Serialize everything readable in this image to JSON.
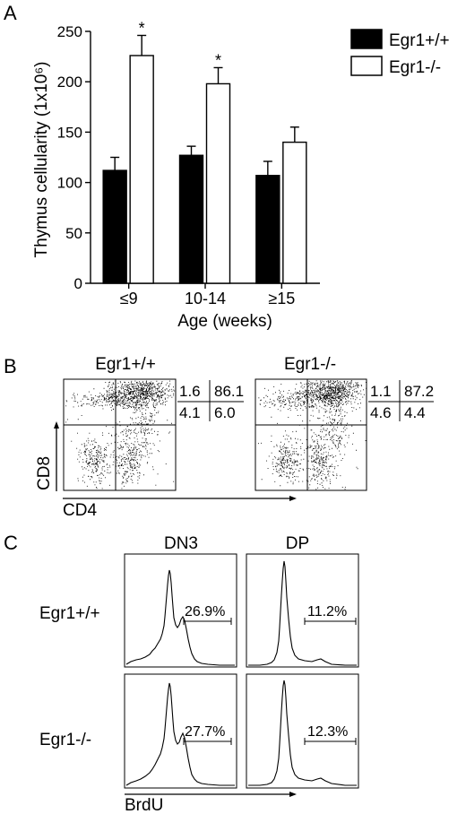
{
  "panel_labels": {
    "a": "A",
    "b": "B",
    "c": "C"
  },
  "chart_data": [
    {
      "type": "bar",
      "ylabel": "Thymus cellularity (1x10⁶)",
      "xlabel": "Age (weeks)",
      "categories": [
        "≤9",
        "10-14",
        "≥15"
      ],
      "ylim": [
        0,
        250
      ],
      "yticks": [
        0,
        50,
        100,
        150,
        200,
        250
      ],
      "series": [
        {
          "name": "Egr1+/+",
          "color": "#000000",
          "values": [
            112,
            127,
            107
          ],
          "errors": [
            13,
            9,
            14
          ]
        },
        {
          "name": "Egr1-/-",
          "color": "#ffffff",
          "values": [
            226,
            198,
            140
          ],
          "errors": [
            20,
            16,
            15
          ]
        }
      ],
      "significance": [
        "*",
        "*",
        ""
      ],
      "legend": "top-right"
    },
    {
      "type": "scatter",
      "description_axes": {
        "x": "CD4",
        "y": "CD8"
      },
      "plots": [
        {
          "title": "Egr1+/+",
          "quadrants": {
            "ul": "1.6",
            "ur": "86.1",
            "ll": "4.1",
            "lr": "6.0"
          }
        },
        {
          "title": "Egr1-/-",
          "quadrants": {
            "ul": "1.1",
            "ur": "87.2",
            "ll": "4.6",
            "lr": "4.4"
          }
        }
      ]
    },
    {
      "type": "line",
      "xlabel": "BrdU",
      "columns": [
        "DN3",
        "DP"
      ],
      "rows": [
        "Egr1+/+",
        "Egr1-/-"
      ],
      "gates": [
        [
          "26.9%",
          "11.2%"
        ],
        [
          "27.7%",
          "12.3%"
        ]
      ]
    }
  ]
}
